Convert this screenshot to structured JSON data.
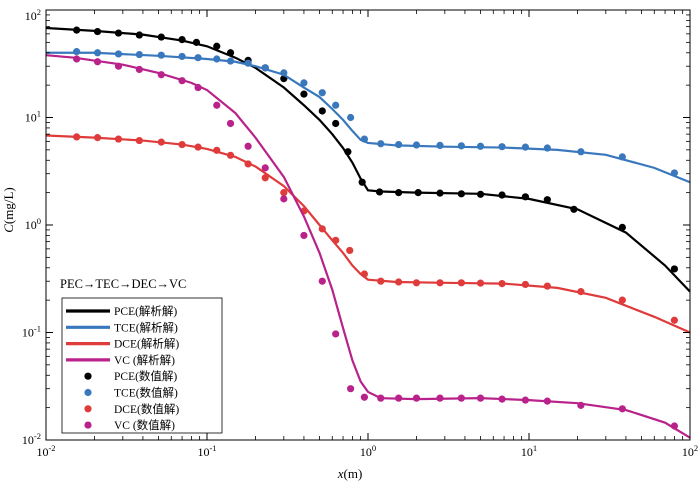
{
  "chart_data": {
    "type": "line",
    "xlabel": "x(m)",
    "ylabel": "C(mg/L)",
    "xscale": "log",
    "yscale": "log",
    "xlim": [
      0.01,
      100
    ],
    "ylim": [
      0.01,
      100
    ],
    "x_ticks": [
      {
        "value": 0.01,
        "base": "10",
        "exp": "-2"
      },
      {
        "value": 0.1,
        "base": "10",
        "exp": "-1"
      },
      {
        "value": 1,
        "base": "10",
        "exp": "0"
      },
      {
        "value": 10,
        "base": "10",
        "exp": "1"
      },
      {
        "value": 100,
        "base": "10",
        "exp": "2"
      }
    ],
    "y_ticks": [
      {
        "value": 0.01,
        "base": "10",
        "exp": "-2"
      },
      {
        "value": 0.1,
        "base": "10",
        "exp": "-1"
      },
      {
        "value": 1,
        "base": "10",
        "exp": "0"
      },
      {
        "value": 10,
        "base": "10",
        "exp": "1"
      },
      {
        "value": 100,
        "base": "10",
        "exp": "2"
      }
    ],
    "annotation": "PEC→TEC→DEC→VC",
    "grid": false,
    "legend_position": "bottom-left",
    "series": [
      {
        "name": "PCE(解析解)",
        "marker_name": "PCE(数值解)",
        "color": "#000000",
        "line": [
          [
            0.01,
            68
          ],
          [
            0.02,
            64
          ],
          [
            0.04,
            59
          ],
          [
            0.07,
            52
          ],
          [
            0.1,
            46
          ],
          [
            0.15,
            36
          ],
          [
            0.2,
            29
          ],
          [
            0.3,
            19
          ],
          [
            0.4,
            13
          ],
          [
            0.5,
            9.5
          ],
          [
            0.6,
            7
          ],
          [
            0.7,
            5.2
          ],
          [
            0.8,
            3.8
          ],
          [
            0.9,
            2.7
          ],
          [
            1.0,
            2.1
          ],
          [
            1.2,
            2.05
          ],
          [
            2,
            2.0
          ],
          [
            5,
            1.95
          ],
          [
            10,
            1.75
          ],
          [
            20,
            1.4
          ],
          [
            40,
            0.85
          ],
          [
            70,
            0.42
          ],
          [
            100,
            0.24
          ]
        ],
        "points": [
          [
            0.0155,
            65
          ],
          [
            0.0209,
            63
          ],
          [
            0.0282,
            61
          ],
          [
            0.038,
            58.5
          ],
          [
            0.052,
            56
          ],
          [
            0.07,
            53
          ],
          [
            0.086,
            50
          ],
          [
            0.115,
            46
          ],
          [
            0.14,
            40
          ],
          [
            0.18,
            34
          ],
          [
            0.23,
            29
          ],
          [
            0.3,
            23
          ],
          [
            0.4,
            16.5
          ],
          [
            0.52,
            11.5
          ],
          [
            0.63,
            8.8
          ],
          [
            0.75,
            4.8
          ],
          [
            0.92,
            2.5
          ],
          [
            1.18,
            2.03
          ],
          [
            1.55,
            2.0
          ],
          [
            2.05,
            2.0
          ],
          [
            2.8,
            1.98
          ],
          [
            3.8,
            1.95
          ],
          [
            5,
            1.93
          ],
          [
            6.8,
            1.9
          ],
          [
            9.5,
            1.83
          ],
          [
            13,
            1.72
          ],
          [
            19,
            1.4
          ],
          [
            38,
            0.95
          ],
          [
            80,
            0.39
          ]
        ]
      },
      {
        "name": "TCE(解析解)",
        "marker_name": "TCE(数值解)",
        "color": "#3a78bd",
        "line": [
          [
            0.01,
            40
          ],
          [
            0.02,
            40
          ],
          [
            0.05,
            37.5
          ],
          [
            0.1,
            35
          ],
          [
            0.15,
            33
          ],
          [
            0.2,
            30
          ],
          [
            0.3,
            25
          ],
          [
            0.4,
            19
          ],
          [
            0.5,
            15.5
          ],
          [
            0.6,
            12
          ],
          [
            0.7,
            9.5
          ],
          [
            0.8,
            7.5
          ],
          [
            0.9,
            6.2
          ],
          [
            1.0,
            5.8
          ],
          [
            1.5,
            5.5
          ],
          [
            3,
            5.35
          ],
          [
            7,
            5.25
          ],
          [
            15,
            5.0
          ],
          [
            30,
            4.5
          ],
          [
            60,
            3.4
          ],
          [
            100,
            2.5
          ]
        ],
        "points": [
          [
            0.0155,
            41
          ],
          [
            0.0209,
            40
          ],
          [
            0.0282,
            39
          ],
          [
            0.038,
            38.5
          ],
          [
            0.052,
            38
          ],
          [
            0.07,
            37
          ],
          [
            0.088,
            36
          ],
          [
            0.115,
            35
          ],
          [
            0.14,
            33.5
          ],
          [
            0.18,
            32
          ],
          [
            0.23,
            29
          ],
          [
            0.3,
            26
          ],
          [
            0.4,
            21
          ],
          [
            0.52,
            17
          ],
          [
            0.63,
            13
          ],
          [
            0.78,
            10
          ],
          [
            0.95,
            6.3
          ],
          [
            1.2,
            5.7
          ],
          [
            1.55,
            5.6
          ],
          [
            2,
            5.55
          ],
          [
            2.8,
            5.5
          ],
          [
            3.8,
            5.45
          ],
          [
            5,
            5.4
          ],
          [
            6.8,
            5.35
          ],
          [
            9.5,
            5.3
          ],
          [
            13,
            5.2
          ],
          [
            21,
            4.8
          ],
          [
            38,
            4.3
          ],
          [
            80,
            3.05
          ]
        ]
      },
      {
        "name": "DCE(解析解)",
        "marker_name": "DCE(数值解)",
        "color": "#e03b3b",
        "line": [
          [
            0.01,
            6.8
          ],
          [
            0.02,
            6.5
          ],
          [
            0.04,
            6.1
          ],
          [
            0.07,
            5.6
          ],
          [
            0.1,
            5.1
          ],
          [
            0.15,
            4.3
          ],
          [
            0.2,
            3.5
          ],
          [
            0.3,
            2.3
          ],
          [
            0.4,
            1.5
          ],
          [
            0.5,
            1.0
          ],
          [
            0.6,
            0.72
          ],
          [
            0.7,
            0.55
          ],
          [
            0.8,
            0.42
          ],
          [
            0.9,
            0.35
          ],
          [
            1.0,
            0.31
          ],
          [
            1.5,
            0.295
          ],
          [
            3,
            0.29
          ],
          [
            7,
            0.285
          ],
          [
            15,
            0.26
          ],
          [
            30,
            0.21
          ],
          [
            60,
            0.14
          ],
          [
            100,
            0.1
          ]
        ],
        "points": [
          [
            0.0155,
            6.6
          ],
          [
            0.0209,
            6.5
          ],
          [
            0.0282,
            6.3
          ],
          [
            0.038,
            6.1
          ],
          [
            0.052,
            5.9
          ],
          [
            0.07,
            5.6
          ],
          [
            0.088,
            5.3
          ],
          [
            0.115,
            4.95
          ],
          [
            0.14,
            4.45
          ],
          [
            0.18,
            3.7
          ],
          [
            0.23,
            2.75
          ],
          [
            0.3,
            2.0
          ],
          [
            0.4,
            1.35
          ],
          [
            0.52,
            0.92
          ],
          [
            0.63,
            0.72
          ],
          [
            0.77,
            0.58
          ],
          [
            0.95,
            0.35
          ],
          [
            1.2,
            0.3
          ],
          [
            1.55,
            0.295
          ],
          [
            2,
            0.29
          ],
          [
            2.8,
            0.29
          ],
          [
            3.8,
            0.29
          ],
          [
            5,
            0.288
          ],
          [
            6.8,
            0.285
          ],
          [
            9.5,
            0.28
          ],
          [
            13,
            0.27
          ],
          [
            21,
            0.24
          ],
          [
            38,
            0.2
          ],
          [
            80,
            0.13
          ]
        ]
      },
      {
        "name": "VC (解析解)",
        "marker_name": "VC (数值解)",
        "color": "#b8228a",
        "line": [
          [
            0.01,
            38
          ],
          [
            0.015,
            36
          ],
          [
            0.03,
            31
          ],
          [
            0.05,
            26
          ],
          [
            0.08,
            21
          ],
          [
            0.1,
            18
          ],
          [
            0.15,
            11
          ],
          [
            0.2,
            6.5
          ],
          [
            0.3,
            2.8
          ],
          [
            0.4,
            1.2
          ],
          [
            0.5,
            0.55
          ],
          [
            0.6,
            0.25
          ],
          [
            0.7,
            0.11
          ],
          [
            0.8,
            0.055
          ],
          [
            0.9,
            0.035
          ],
          [
            1.0,
            0.028
          ],
          [
            1.2,
            0.0245
          ],
          [
            2,
            0.024
          ],
          [
            5,
            0.0245
          ],
          [
            10,
            0.0235
          ],
          [
            20,
            0.022
          ],
          [
            40,
            0.019
          ],
          [
            70,
            0.0145
          ],
          [
            100,
            0.0105
          ]
        ],
        "points": [
          [
            0.0155,
            35
          ],
          [
            0.0209,
            33
          ],
          [
            0.0282,
            30
          ],
          [
            0.038,
            28
          ],
          [
            0.052,
            25
          ],
          [
            0.07,
            22
          ],
          [
            0.088,
            19
          ],
          [
            0.115,
            13
          ],
          [
            0.14,
            8.8
          ],
          [
            0.18,
            5.4
          ],
          [
            0.23,
            3.4
          ],
          [
            0.3,
            1.75
          ],
          [
            0.4,
            0.8
          ],
          [
            0.52,
            0.3
          ],
          [
            0.63,
            0.097
          ],
          [
            0.78,
            0.03
          ],
          [
            0.95,
            0.025
          ],
          [
            1.2,
            0.0245
          ],
          [
            1.55,
            0.0245
          ],
          [
            2,
            0.0245
          ],
          [
            2.8,
            0.0245
          ],
          [
            3.8,
            0.0245
          ],
          [
            5,
            0.0245
          ],
          [
            6.8,
            0.024
          ],
          [
            9.5,
            0.0235
          ],
          [
            13,
            0.023
          ],
          [
            21,
            0.021
          ],
          [
            38,
            0.0195
          ],
          [
            80,
            0.0135
          ]
        ]
      }
    ]
  }
}
